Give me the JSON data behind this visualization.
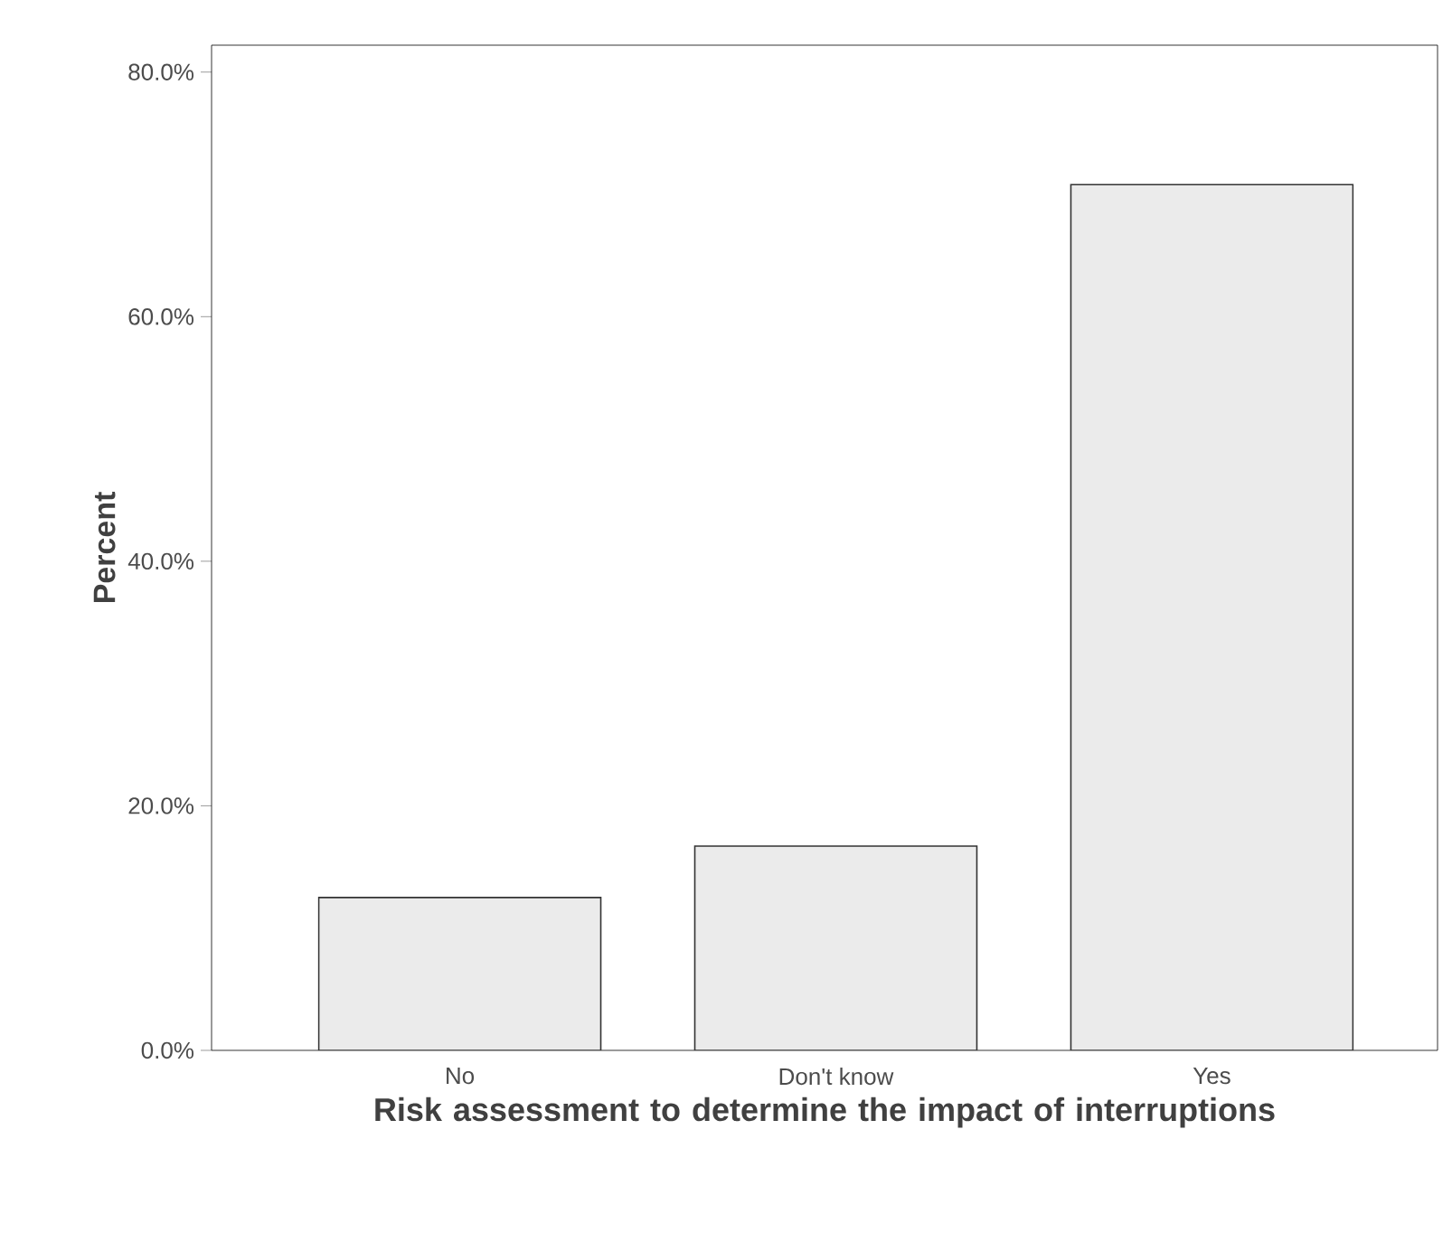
{
  "chart_data": {
    "type": "bar",
    "xlabel": "Risk assessment to determine the impact of interruptions",
    "ylabel": "Percent",
    "categories": [
      "No",
      "Don't know",
      "Yes"
    ],
    "values": [
      12.5,
      16.7,
      70.8
    ],
    "color": "#ebebeb",
    "ylim": [
      0,
      82.2
    ],
    "yticks": [
      {
        "value": 0,
        "label": "0.0%"
      },
      {
        "value": 20,
        "label": "20.0%"
      },
      {
        "value": 40,
        "label": "40.0%"
      },
      {
        "value": 60,
        "label": "60.0%"
      },
      {
        "value": 80,
        "label": "80.0%"
      }
    ],
    "grid": false
  }
}
